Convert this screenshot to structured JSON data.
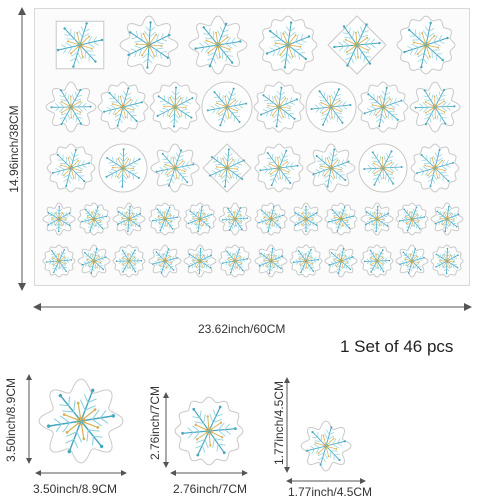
{
  "sheet": {
    "width_label": "23.62inch/60CM",
    "height_label": "14.96inch/38CM"
  },
  "set_label": "1 Set of 46 pcs",
  "samples": [
    {
      "width_label": "3.50inch/8.9CM",
      "height_label": "3.50inch/8.9CM"
    },
    {
      "width_label": "2.76inch/7CM",
      "height_label": "2.76inch/7CM"
    },
    {
      "width_label": "1.77inch/4.5CM",
      "height_label": "1.77inch/4.5CM"
    }
  ],
  "colors": {
    "teal": "#46a7c0",
    "light_teal": "#8fd0df",
    "gold": "#d9b35a",
    "outline": "#c9c9c9"
  },
  "sticker_rows": [
    {
      "count": 6,
      "shapes": [
        "square",
        "flower",
        "flower",
        "wavy",
        "diamond",
        "wavy"
      ]
    },
    {
      "count": 8,
      "shapes": [
        "flower",
        "wavy",
        "wavy",
        "circle",
        "wavy",
        "circle",
        "wavy",
        "flower"
      ]
    },
    {
      "count": 8,
      "shapes": [
        "wavy",
        "circle",
        "flower",
        "diamond",
        "wavy",
        "flower",
        "circle",
        "wavy"
      ]
    },
    {
      "count": 12,
      "shapes": [
        "flower",
        "wavy",
        "flower",
        "wavy",
        "wavy",
        "flower",
        "wavy",
        "flower",
        "wavy",
        "flower",
        "wavy",
        "flower"
      ]
    },
    {
      "count": 12,
      "shapes": [
        "wavy",
        "flower",
        "wavy",
        "flower",
        "flower",
        "wavy",
        "flower",
        "wavy",
        "flower",
        "wavy",
        "flower",
        "wavy"
      ]
    }
  ]
}
